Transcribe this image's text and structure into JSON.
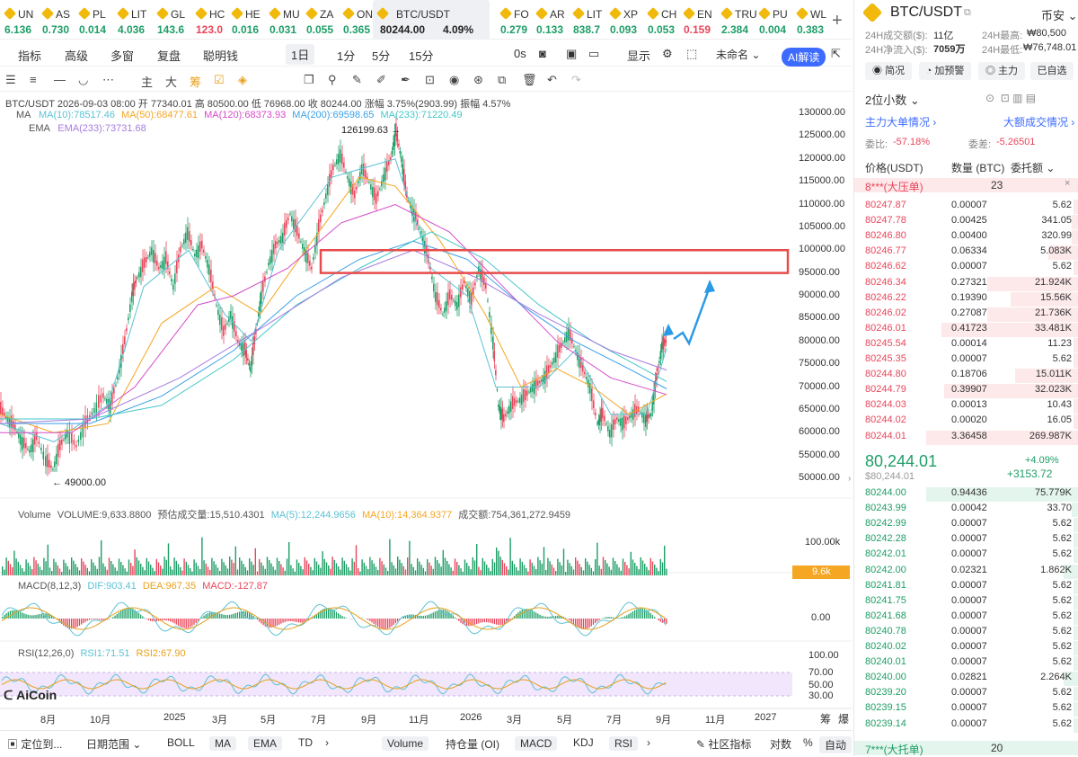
{
  "ticker": [
    {
      "sym": "UN",
      "price": "6.136",
      "dir": "up"
    },
    {
      "sym": "AS",
      "price": "0.730",
      "dir": "up"
    },
    {
      "sym": "PL",
      "price": "0.014",
      "dir": "up"
    },
    {
      "sym": "LIT",
      "price": "4.036",
      "dir": "up"
    },
    {
      "sym": "GL",
      "price": "143.6",
      "dir": "up"
    },
    {
      "sym": "HC",
      "price": "123.0",
      "dir": "dn"
    },
    {
      "sym": "HE",
      "price": "0.016",
      "dir": "up"
    },
    {
      "sym": "MU",
      "price": "0.031",
      "dir": "up"
    },
    {
      "sym": "ZA",
      "price": "0.055",
      "dir": "up"
    },
    {
      "sym": "ON",
      "price": "0.365",
      "dir": "up"
    },
    {
      "sym": "BTC/USDT",
      "price": "80244.00",
      "change": "4.09%",
      "dir": "up"
    },
    {
      "sym": "FO",
      "price": "0.279",
      "dir": "up"
    },
    {
      "sym": "AR",
      "price": "0.133",
      "dir": "up"
    },
    {
      "sym": "LIT",
      "price": "838.7",
      "dir": "up"
    },
    {
      "sym": "XP",
      "price": "0.093",
      "dir": "up"
    },
    {
      "sym": "CH",
      "price": "0.053",
      "dir": "up"
    },
    {
      "sym": "EN",
      "price": "0.159",
      "dir": "dn"
    },
    {
      "sym": "TRU",
      "price": "2.384",
      "dir": "up"
    },
    {
      "sym": "PU",
      "price": "0.004",
      "dir": "up"
    },
    {
      "sym": "WL",
      "price": "0.383",
      "dir": "up"
    }
  ],
  "toolbar1": {
    "items": [
      "指标",
      "高级",
      "多窗",
      "复盘",
      "聪明钱"
    ],
    "period": "1日",
    "tfs": [
      "1分",
      "5分",
      "15分"
    ],
    "zero": "0s",
    "show": "显示",
    "unnamed": "未命名",
    "ai": "AI解读"
  },
  "chart_info": {
    "line1": "BTC/USDT  2026-09-03 08:00  开 77340.01  高 80500.00  低 76968.00  收 80244.00  涨幅 3.75%(2903.99)  振幅 4.57%",
    "ma_label": "MA",
    "ma10": "MA(10):78517.46",
    "ma50": "MA(50):68477.61",
    "ma120": "MA(120):68373.93",
    "ma200": "MA(200):69598.65",
    "ma233": "MA(233):71220.49",
    "ema_label": "EMA",
    "ema233": "EMA(233):73731.68",
    "high_mark": "126199.63 →",
    "low_mark": "← 49000.00"
  },
  "price_axis": [
    "130000.00",
    "125000.00",
    "120000.00",
    "115000.00",
    "110000.00",
    "105000.00",
    "100000.00",
    "95000.00",
    "90000.00",
    "85000.00",
    "80000.00",
    "75000.00",
    "70000.00",
    "65000.00",
    "60000.00",
    "55000.00",
    "50000.00"
  ],
  "volume": {
    "label": "Volume",
    "vol": "VOLUME:9,633.8800",
    "pred": "预估成交量:15,510.4301",
    "ma5": "MA(5):12,244.9656",
    "ma10": "MA(10):14,364.9377",
    "amt": "成交额:754,361,272.9459",
    "axis_top": "100.00k",
    "badge": "9.6k"
  },
  "macd": {
    "label": "MACD(8,12,3)",
    "dif": "DIF:903.41",
    "dea": "DEA:967.35",
    "macd": "MACD:-127.87",
    "axis": "0.00"
  },
  "rsi": {
    "label": "RSI(12,26,0)",
    "rsi1": "RSI1:71.51",
    "rsi2": "RSI2:67.90",
    "axis": [
      "100.00",
      "70.00",
      "50.00",
      "30.00"
    ]
  },
  "time_axis": [
    "8月",
    "10月",
    "2025",
    "3月",
    "5月",
    "7月",
    "9月",
    "11月",
    "2026",
    "3月",
    "5月",
    "7月",
    "9月",
    "11月",
    "2027"
  ],
  "time_right": [
    "筹",
    "爆"
  ],
  "watermark": "AiCoin",
  "bottom": {
    "locate": "定位到...",
    "range": "日期范围",
    "items": [
      "BOLL",
      "MA",
      "EMA",
      "TD"
    ],
    "items2": [
      "Volume",
      "持仓量 (OI)",
      "MACD",
      "KDJ",
      "RSI"
    ],
    "right": [
      "社区指标",
      "对数",
      "%",
      "自动"
    ]
  },
  "panel": {
    "title": "BTC/USDT",
    "exchange": "币安",
    "s1l": "24H成交额($):",
    "s1v": "11亿",
    "s2l": "24H最高:",
    "s2v": "₩80,500",
    "s3l": "24H净流入($):",
    "s3v": "7059万",
    "s4l": "24H最低:",
    "s4v": "₩76,748.01",
    "pills": [
      "简况",
      "加预警",
      "主力",
      "已自选"
    ],
    "decimals": "2位小数",
    "main_flow": "主力大单情况",
    "big_trades": "大额成交情况",
    "wb_l": "委比:",
    "wb_v": "-57.18%",
    "wc_l": "委差:",
    "wc_v": "-5.26501",
    "h_price": "价格(USDT)",
    "h_qty": "数量 (BTC)",
    "h_amt": "委托额",
    "ask_big": "8***(大压单)",
    "ask_big_n": "23",
    "asks": [
      [
        "80247.87",
        "0.00007",
        "5.62",
        0.02
      ],
      [
        "80247.78",
        "0.00425",
        "341.05",
        0.05
      ],
      [
        "80246.80",
        "0.00400",
        "320.99",
        0.05
      ],
      [
        "80246.77",
        "0.06334",
        "5.083K",
        0.2
      ],
      [
        "80246.62",
        "0.00007",
        "5.62",
        0.02
      ],
      [
        "80246.34",
        "0.27321",
        "21.924K",
        0.6
      ],
      [
        "80246.22",
        "0.19390",
        "15.56K",
        0.45
      ],
      [
        "80246.02",
        "0.27087",
        "21.736K",
        0.6
      ],
      [
        "80246.01",
        "0.41723",
        "33.481K",
        0.9
      ],
      [
        "80245.54",
        "0.00014",
        "11.23",
        0.02
      ],
      [
        "80245.35",
        "0.00007",
        "5.62",
        0.02
      ],
      [
        "80244.80",
        "0.18706",
        "15.011K",
        0.42
      ],
      [
        "80244.79",
        "0.39907",
        "32.023K",
        0.88
      ],
      [
        "80244.03",
        "0.00013",
        "10.43",
        0.02
      ],
      [
        "80244.02",
        "0.00020",
        "16.05",
        0.02
      ],
      [
        "80244.01",
        "3.36458",
        "269.987K",
        1.0
      ]
    ],
    "last": "80,244.01",
    "last_sub": "$80,244.01",
    "chg_pct": "+4.09%",
    "chg_abs": "+3153.72",
    "bids": [
      [
        "80244.00",
        "0.94436",
        "75.779K",
        1.0
      ],
      [
        "80243.99",
        "0.00042",
        "33.70",
        0.05
      ],
      [
        "80242.99",
        "0.00007",
        "5.62",
        0.02
      ],
      [
        "80242.28",
        "0.00007",
        "5.62",
        0.02
      ],
      [
        "80242.01",
        "0.00007",
        "5.62",
        0.02
      ],
      [
        "80242.00",
        "0.02321",
        "1.862K",
        0.1
      ],
      [
        "80241.81",
        "0.00007",
        "5.62",
        0.02
      ],
      [
        "80241.75",
        "0.00007",
        "5.62",
        0.02
      ],
      [
        "80241.68",
        "0.00007",
        "5.62",
        0.02
      ],
      [
        "80240.78",
        "0.00007",
        "5.62",
        0.02
      ],
      [
        "80240.02",
        "0.00007",
        "5.62",
        0.02
      ],
      [
        "80240.01",
        "0.00007",
        "5.62",
        0.02
      ],
      [
        "80240.00",
        "0.02821",
        "2.264K",
        0.1
      ],
      [
        "80239.20",
        "0.00007",
        "5.62",
        0.02
      ],
      [
        "80239.15",
        "0.00007",
        "5.62",
        0.02
      ],
      [
        "80239.14",
        "0.00007",
        "5.62",
        0.02
      ]
    ],
    "bid_big": "7***(大托单)",
    "bid_big_n": "20"
  },
  "colors": {
    "up": "#1e9e67",
    "down": "#e8465b",
    "accent": "#3d6bff",
    "ma10": "#5bc2d6",
    "ma50": "#f5a623",
    "ma120": "#d64bc8",
    "ma200": "#3aa0e8",
    "ma233": "#45c7c7",
    "ema": "#a67be0",
    "rect": "#e84b4b",
    "arrow": "#2a9ae6"
  }
}
